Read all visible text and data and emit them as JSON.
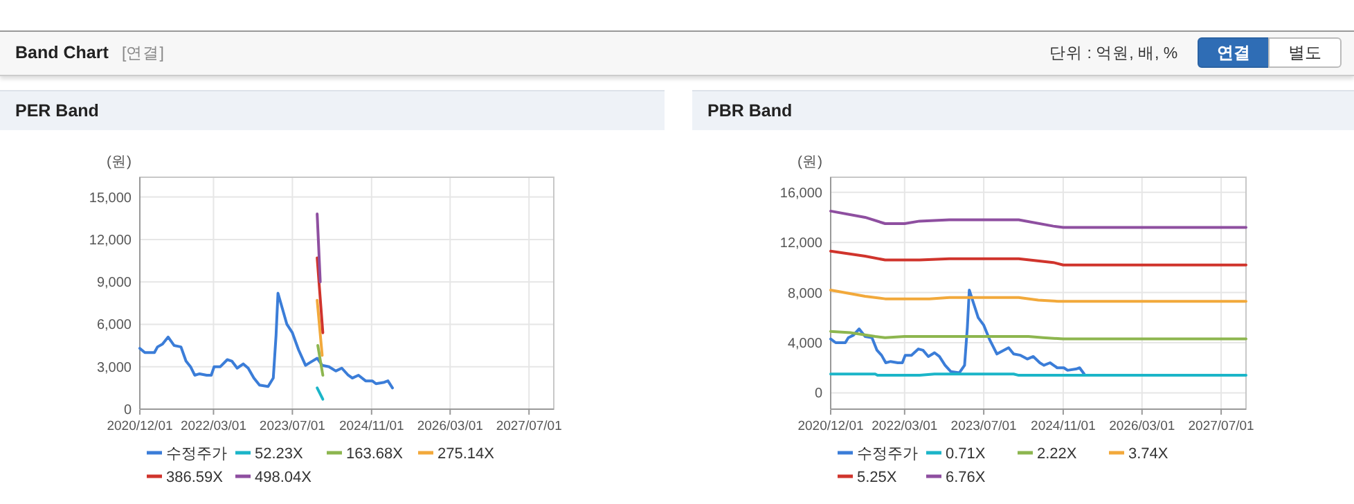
{
  "chart_data": [
    {
      "type": "other",
      "title": "Band Chart",
      "subtitle": "[연결]",
      "annotations": [
        "단위 : 억원, 배, %",
        "연결",
        "별도"
      ]
    },
    {
      "type": "line",
      "title": "PER Band",
      "ylabel": "(원)",
      "grid": true,
      "legend": "bottom",
      "xlim": [
        "2020-12-01",
        "2027-12-01"
      ],
      "ylim": [
        0,
        16400
      ],
      "xticks": [
        {
          "value": "2020-12-01",
          "label": "2020/12/01"
        },
        {
          "value": "2022-03-01",
          "label": "2022/03/01"
        },
        {
          "value": "2023-07-01",
          "label": "2023/07/01"
        },
        {
          "value": "2024-11-01",
          "label": "2024/11/01"
        },
        {
          "value": "2026-03-01",
          "label": "2026/03/01"
        },
        {
          "value": "2027-07-01",
          "label": "2027/07/01"
        }
      ],
      "yticks": [
        0,
        {
          "value": 3000,
          "label": "3,000"
        },
        {
          "value": 6000,
          "label": "6,000"
        },
        {
          "value": 9000,
          "label": "9,000"
        },
        {
          "value": 12000,
          "label": "12,000"
        },
        {
          "value": 15000,
          "label": "15,000"
        }
      ],
      "series": [
        {
          "name": "수정주가",
          "color": "#3b7dd8",
          "x": [
            "2020-12-01",
            "2021-01-01",
            "2021-03-01",
            "2021-03-20",
            "2021-04-20",
            "2021-05-25",
            "2021-07-01",
            "2021-08-12",
            "2021-09-12",
            "2021-10-10",
            "2021-11-05",
            "2021-12-05",
            "2022-01-18",
            "2022-02-15",
            "2022-03-05",
            "2022-04-12",
            "2022-05-25",
            "2022-06-22",
            "2022-07-25",
            "2022-09-01",
            "2022-10-01",
            "2022-11-05",
            "2022-12-10",
            "2023-02-01",
            "2023-03-05",
            "2023-03-22",
            "2023-04-03",
            "2023-04-18",
            "2023-05-28",
            "2023-07-01",
            "2023-08-08",
            "2023-09-20",
            "2023-10-18",
            "2023-12-01",
            "2024-01-01",
            "2024-02-12",
            "2024-03-25",
            "2024-05-01",
            "2024-06-10",
            "2024-07-05",
            "2024-08-12",
            "2024-09-25",
            "2024-11-05",
            "2024-11-28",
            "2025-01-18",
            "2025-02-10",
            "2025-03-10"
          ],
          "values": [
            4300,
            4000,
            4000,
            4400,
            4600,
            5100,
            4500,
            4400,
            3400,
            3000,
            2400,
            2500,
            2400,
            2400,
            3000,
            3000,
            3500,
            3400,
            2900,
            3200,
            2900,
            2200,
            1700,
            1600,
            2200,
            5200,
            8200,
            7600,
            6000,
            5400,
            4200,
            3100,
            3300,
            3600,
            3100,
            3000,
            2700,
            2900,
            2400,
            2200,
            2400,
            2000,
            2000,
            1800,
            1900,
            2000,
            1500
          ]
        },
        {
          "name": "52.23X",
          "color": "#1bb5c8",
          "x": [
            "2023-12-01",
            "2024-01-05"
          ],
          "values": [
            1500,
            700
          ]
        },
        {
          "name": "163.68X",
          "color": "#8db64f",
          "x": [
            "2023-12-05",
            "2024-01-05"
          ],
          "values": [
            4500,
            2400
          ]
        },
        {
          "name": "275.14X",
          "color": "#f2a93b",
          "x": [
            "2023-12-01",
            "2024-01-01"
          ],
          "values": [
            7700,
            3800
          ]
        },
        {
          "name": "386.59X",
          "color": "#d0342c",
          "x": [
            "2023-12-01",
            "2024-01-05"
          ],
          "values": [
            10700,
            5400
          ]
        },
        {
          "name": "498.04X",
          "color": "#8e4fa0",
          "x": [
            "2023-12-01",
            "2023-12-20"
          ],
          "values": [
            13800,
            9000
          ]
        }
      ]
    },
    {
      "type": "line",
      "title": "PBR Band",
      "ylabel": "(원)",
      "grid": true,
      "legend": "bottom",
      "xlim": [
        "2020-12-01",
        "2027-12-01"
      ],
      "ylim": [
        -1300,
        17200
      ],
      "xticks": [
        {
          "value": "2020-12-01",
          "label": "2020/12/01"
        },
        {
          "value": "2022-03-01",
          "label": "2022/03/01"
        },
        {
          "value": "2023-07-01",
          "label": "2023/07/01"
        },
        {
          "value": "2024-11-01",
          "label": "2024/11/01"
        },
        {
          "value": "2026-03-01",
          "label": "2026/03/01"
        },
        {
          "value": "2027-07-01",
          "label": "2027/07/01"
        }
      ],
      "yticks": [
        0,
        {
          "value": 4000,
          "label": "4,000"
        },
        {
          "value": 8000,
          "label": "8,000"
        },
        {
          "value": 12000,
          "label": "12,000"
        },
        {
          "value": 16000,
          "label": "16,000"
        }
      ],
      "series": [
        {
          "name": "수정주가",
          "color": "#3b7dd8",
          "x": [
            "2020-12-01",
            "2021-01-01",
            "2021-03-01",
            "2021-03-20",
            "2021-04-20",
            "2021-05-25",
            "2021-07-01",
            "2021-08-12",
            "2021-09-12",
            "2021-10-10",
            "2021-11-05",
            "2021-12-05",
            "2022-01-18",
            "2022-02-15",
            "2022-03-05",
            "2022-04-12",
            "2022-05-25",
            "2022-06-22",
            "2022-07-25",
            "2022-09-01",
            "2022-10-01",
            "2022-11-05",
            "2022-12-10",
            "2023-02-01",
            "2023-03-05",
            "2023-03-22",
            "2023-04-03",
            "2023-04-18",
            "2023-05-28",
            "2023-07-01",
            "2023-08-08",
            "2023-09-20",
            "2023-10-18",
            "2023-12-01",
            "2024-01-01",
            "2024-02-12",
            "2024-03-25",
            "2024-05-01",
            "2024-06-10",
            "2024-07-05",
            "2024-08-12",
            "2024-09-25",
            "2024-11-05",
            "2024-11-28",
            "2025-01-18",
            "2025-02-10",
            "2025-03-10"
          ],
          "values": [
            4300,
            4000,
            4000,
            4400,
            4600,
            5100,
            4500,
            4400,
            3400,
            3000,
            2400,
            2500,
            2400,
            2400,
            3000,
            3000,
            3500,
            3400,
            2900,
            3200,
            2900,
            2200,
            1700,
            1600,
            2200,
            5200,
            8200,
            7600,
            6000,
            5400,
            4200,
            3100,
            3300,
            3600,
            3100,
            3000,
            2700,
            2900,
            2400,
            2200,
            2400,
            2000,
            2000,
            1800,
            1900,
            2000,
            1500
          ]
        },
        {
          "name": "0.71X",
          "color": "#1bb5c8",
          "x": [
            "2020-12-01",
            "2021-09-01",
            "2021-09-15",
            "2022-06-01",
            "2022-09-01",
            "2024-01-01",
            "2024-02-01",
            "2027-12-01"
          ],
          "values": [
            1500,
            1500,
            1400,
            1400,
            1500,
            1500,
            1400,
            1400
          ]
        },
        {
          "name": "2.22X",
          "color": "#8db64f",
          "x": [
            "2020-12-01",
            "2021-04-01",
            "2021-09-01",
            "2021-11-01",
            "2022-03-01",
            "2024-04-01",
            "2024-07-01",
            "2024-11-01",
            "2027-12-01"
          ],
          "values": [
            4900,
            4800,
            4500,
            4400,
            4500,
            4500,
            4400,
            4300,
            4300
          ]
        },
        {
          "name": "3.74X",
          "color": "#f2a93b",
          "x": [
            "2020-12-01",
            "2021-07-01",
            "2021-11-01",
            "2022-08-01",
            "2022-12-01",
            "2024-02-01",
            "2024-06-01",
            "2024-10-01",
            "2027-12-01"
          ],
          "values": [
            8200,
            7700,
            7500,
            7500,
            7600,
            7600,
            7400,
            7300,
            7300
          ]
        },
        {
          "name": "5.25X",
          "color": "#d0342c",
          "x": [
            "2020-12-01",
            "2021-07-01",
            "2021-11-01",
            "2022-03-01",
            "2022-06-01",
            "2022-12-01",
            "2024-02-01",
            "2024-09-01",
            "2024-11-01",
            "2027-12-01"
          ],
          "values": [
            11300,
            10900,
            10600,
            10600,
            10600,
            10700,
            10700,
            10400,
            10200,
            10200
          ]
        },
        {
          "name": "6.76X",
          "color": "#8e4fa0",
          "x": [
            "2020-12-01",
            "2021-07-01",
            "2021-11-01",
            "2022-03-01",
            "2022-06-01",
            "2022-12-01",
            "2024-02-01",
            "2024-09-01",
            "2024-11-01",
            "2027-12-01"
          ],
          "values": [
            14500,
            14000,
            13500,
            13500,
            13700,
            13800,
            13800,
            13300,
            13200,
            13200
          ]
        }
      ]
    }
  ]
}
